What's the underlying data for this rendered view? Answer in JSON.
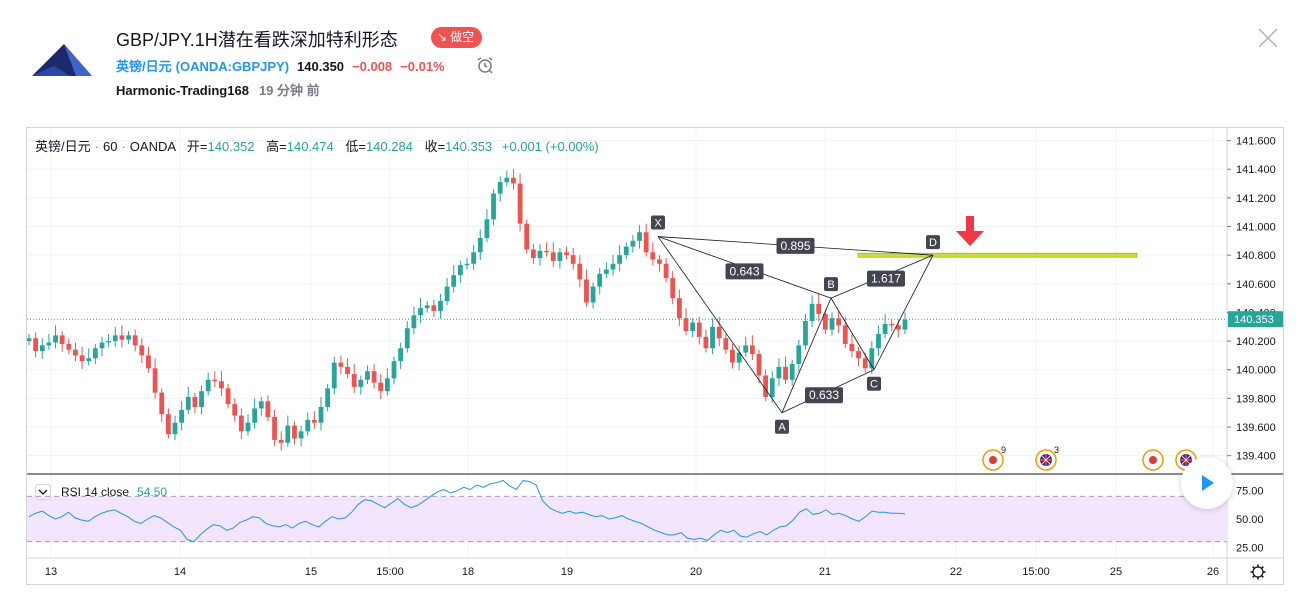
{
  "header": {
    "title": "GBP/JPY.1H潜在看跌深加特利形态",
    "badge": "做空",
    "symbol_name": "英镑/日元",
    "symbol_exchange": "(OANDA:GBPJPY)",
    "price": "140.350",
    "change": "−0.008",
    "change_pct": "−0.01%",
    "author": "Harmonic-Trading168",
    "time_ago": "19 分钟 前",
    "icons": {
      "logo": "mountain-logo",
      "alarm": "alarm-clock-icon",
      "close": "close-icon"
    },
    "colors": {
      "accent": "#2196f3",
      "down": "#ef5350"
    }
  },
  "legend": {
    "symbol": "英镑/日元",
    "interval": "60",
    "exchange": "OANDA",
    "open_label": "开=",
    "open": "140.352",
    "high_label": "高=",
    "high": "140.474",
    "low_label": "低=",
    "low": "140.284",
    "close_label": "收=",
    "close": "140.353",
    "change": "+0.001 (+0.00%)"
  },
  "rsi": {
    "label": "RSI 14 close",
    "value": "54.50",
    "upper": 70,
    "lower": 30,
    "ticks": [
      "75.00",
      "50.00",
      "25.00"
    ],
    "values": [
      52,
      55,
      57,
      53,
      50,
      52,
      56,
      51,
      49,
      48,
      52,
      55,
      57,
      58,
      55,
      52,
      48,
      46,
      50,
      53,
      51,
      47,
      43,
      40,
      32,
      30,
      36,
      41,
      45,
      44,
      40,
      42,
      47,
      49,
      52,
      51,
      46,
      44,
      43,
      45,
      42,
      46,
      48,
      45,
      43,
      48,
      52,
      50,
      51,
      56,
      63,
      67,
      66,
      63,
      60,
      64,
      68,
      63,
      60,
      62,
      66,
      70,
      74,
      76,
      73,
      75,
      78,
      76,
      80,
      78,
      81,
      82,
      84,
      79,
      76,
      84,
      83,
      80,
      66,
      60,
      57,
      55,
      57,
      55,
      56,
      54,
      52,
      53,
      50,
      51,
      53,
      50,
      48,
      46,
      43,
      40,
      38,
      36,
      36,
      38,
      33,
      32,
      33,
      31,
      36,
      40,
      38,
      40,
      35,
      34,
      37,
      39,
      36,
      40,
      43,
      44,
      49,
      56,
      59,
      54,
      55,
      58,
      54,
      55,
      53,
      50,
      48,
      52,
      57,
      56,
      56,
      55,
      55,
      54.5
    ]
  },
  "chart_data": {
    "type": "candlestick",
    "title": "",
    "xlabel": "",
    "ylabel": "",
    "ylim": [
      139.3,
      141.66
    ],
    "y_ticks": [
      "141.600",
      "141.400",
      "141.200",
      "141.000",
      "140.800",
      "140.600",
      "140.400",
      "140.200",
      "140.000",
      "139.800",
      "139.600",
      "139.400"
    ],
    "x_ticks": [
      "13",
      "14",
      "15",
      "15:00",
      "18",
      "19",
      "20",
      "21",
      "22",
      "15:00",
      "25",
      "26"
    ],
    "last_price_label": "140.353",
    "last_price": 140.353,
    "candles_open": 140.2,
    "candles_close": [
      140.22,
      140.13,
      140.17,
      140.19,
      140.24,
      140.18,
      140.14,
      140.1,
      140.06,
      140.08,
      140.15,
      140.19,
      140.2,
      140.24,
      140.21,
      140.24,
      140.17,
      140.1,
      140.01,
      139.84,
      139.69,
      139.55,
      139.63,
      139.72,
      139.81,
      139.74,
      139.85,
      139.93,
      139.92,
      139.87,
      139.76,
      139.68,
      139.57,
      139.63,
      139.73,
      139.78,
      139.67,
      139.51,
      139.49,
      139.61,
      139.52,
      139.57,
      139.65,
      139.63,
      139.74,
      139.87,
      140.05,
      140.02,
      139.97,
      139.88,
      139.93,
      139.99,
      139.91,
      139.85,
      139.94,
      140.06,
      140.15,
      140.29,
      140.38,
      140.43,
      140.45,
      140.41,
      140.48,
      140.58,
      140.66,
      140.73,
      140.74,
      140.82,
      140.92,
      141.05,
      141.23,
      141.31,
      141.34,
      141.3,
      141.02,
      140.84,
      140.78,
      140.83,
      140.82,
      140.76,
      140.82,
      140.8,
      140.74,
      140.63,
      140.47,
      140.58,
      140.67,
      140.7,
      140.74,
      140.8,
      140.86,
      140.9,
      140.96,
      140.82,
      140.77,
      140.74,
      140.64,
      140.5,
      140.36,
      140.27,
      140.33,
      140.23,
      140.15,
      140.3,
      140.22,
      140.14,
      140.05,
      140.12,
      140.17,
      140.11,
      139.96,
      139.81,
      139.94,
      140.02,
      139.93,
      140.04,
      140.17,
      140.34,
      140.46,
      140.39,
      140.28,
      140.36,
      140.31,
      140.18,
      140.13,
      140.08,
      140.01,
      140.15,
      140.25,
      140.32,
      140.31,
      140.28,
      140.35
    ],
    "harmonic_pattern": {
      "points": [
        {
          "label": "X",
          "price": 140.93
        },
        {
          "label": "A",
          "price": 139.7
        },
        {
          "label": "B",
          "price": 140.5
        },
        {
          "label": "C",
          "price": 140.0
        },
        {
          "label": "D",
          "price": 140.8
        }
      ],
      "ratios": [
        "0.895",
        "0.643",
        "1.617",
        "0.633"
      ],
      "target_level": 140.8
    },
    "markers": [
      {
        "icon": "event-icon",
        "count": "9"
      },
      {
        "icon": "uk-flag-icon",
        "count": "3"
      },
      {
        "icon": "event-icon",
        "count": ""
      },
      {
        "icon": "uk-flag-icon",
        "count": ""
      }
    ],
    "colors": {
      "up": "#26a69a",
      "down": "#ef5350",
      "pattern": "#131722",
      "level": "#cddc39",
      "rsi_fill": "#f3e5fd",
      "rsi_line": "#2196f3",
      "arrow": "#f23645"
    }
  }
}
